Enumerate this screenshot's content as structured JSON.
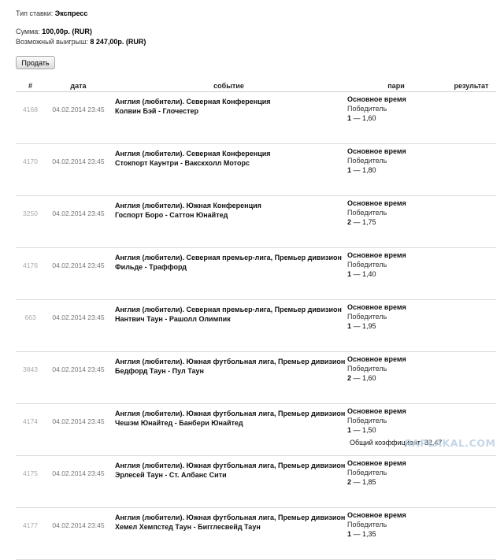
{
  "header": {
    "bet_type_label": "Тип ставки:",
    "bet_type_value": "Экспресс",
    "sum_label": "Сумма:",
    "sum_value": "100,00р. (RUR)",
    "win_label": "Возможный выигрыш:",
    "win_value": "8 247,00р. (RUR)"
  },
  "sell_button": {
    "label": "Продать"
  },
  "table": {
    "columns": {
      "id": "#",
      "date": "дата",
      "event": "событие",
      "bet": "пари",
      "result": "результат"
    },
    "rows": [
      {
        "id": "4168",
        "date": "04.02.2014 23:45",
        "league": "Англия (любители). Северная Конференция",
        "match": "Колвин Бэй - Глочестер",
        "period": "Основное время",
        "market": "Победитель",
        "outcome": "1",
        "odds": "1,60"
      },
      {
        "id": "4170",
        "date": "04.02.2014 23:45",
        "league": "Англия (любители). Северная Конференция",
        "match": "Стокпорт Каунтри - Вакскхолл Моторс",
        "period": "Основное время",
        "market": "Победитель",
        "outcome": "1",
        "odds": "1,80"
      },
      {
        "id": "3250",
        "date": "04.02.2014 23:45",
        "league": "Англия (любители). Южная Конференция",
        "match": "Госпорт Боро - Саттон Юнайтед",
        "period": "Основное время",
        "market": "Победитель",
        "outcome": "2",
        "odds": "1,75"
      },
      {
        "id": "4176",
        "date": "04.02.2014 23:45",
        "league": "Англия (любители). Северная премьер-лига, Премьер дивизион",
        "match": "Фильде - Траффорд",
        "period": "Основное время",
        "market": "Победитель",
        "outcome": "1",
        "odds": "1,40"
      },
      {
        "id": "663",
        "date": "04.02.2014 23:45",
        "league": "Англия (любители). Северная премьер-лига, Премьер дивизион",
        "match": "Нантвич Таун - Рашолл Олимпик",
        "period": "Основное время",
        "market": "Победитель",
        "outcome": "1",
        "odds": "1,95"
      },
      {
        "id": "3843",
        "date": "04.02.2014 23:45",
        "league": "Англия (любители). Южная футбольная лига, Премьер дивизион",
        "match": "Бедфорд Таун - Пул Таун",
        "period": "Основное время",
        "market": "Победитель",
        "outcome": "2",
        "odds": "1,60"
      },
      {
        "id": "4174",
        "date": "04.02.2014 23:45",
        "league": "Англия (любители). Южная футбольная лига, Премьер дивизион",
        "match": "Чешэм Юнайтед - Банбери Юнайтед",
        "period": "Основное время",
        "market": "Победитель",
        "outcome": "1",
        "odds": "1,50"
      },
      {
        "id": "4175",
        "date": "04.02.2014 23:45",
        "league": "Англия (любители). Южная футбольная лига, Премьер дивизион",
        "match": "Эрлесей Таун - Ст. Албанс Сити",
        "period": "Основное время",
        "market": "Победитель",
        "outcome": "2",
        "odds": "1,85"
      },
      {
        "id": "4177",
        "date": "04.02.2014 23:45",
        "league": "Англия (любители). Южная футбольная лига, Премьер дивизион",
        "match": "Хемел Хемпстед Таун - Бигглесвейд Таун",
        "period": "Основное время",
        "market": "Победитель",
        "outcome": "1",
        "odds": "1,35"
      }
    ]
  },
  "total": {
    "label": "Общий коэффициент:",
    "value": "82,47"
  },
  "watermark": {
    "text": "ЯАPLAKAL.COM"
  }
}
